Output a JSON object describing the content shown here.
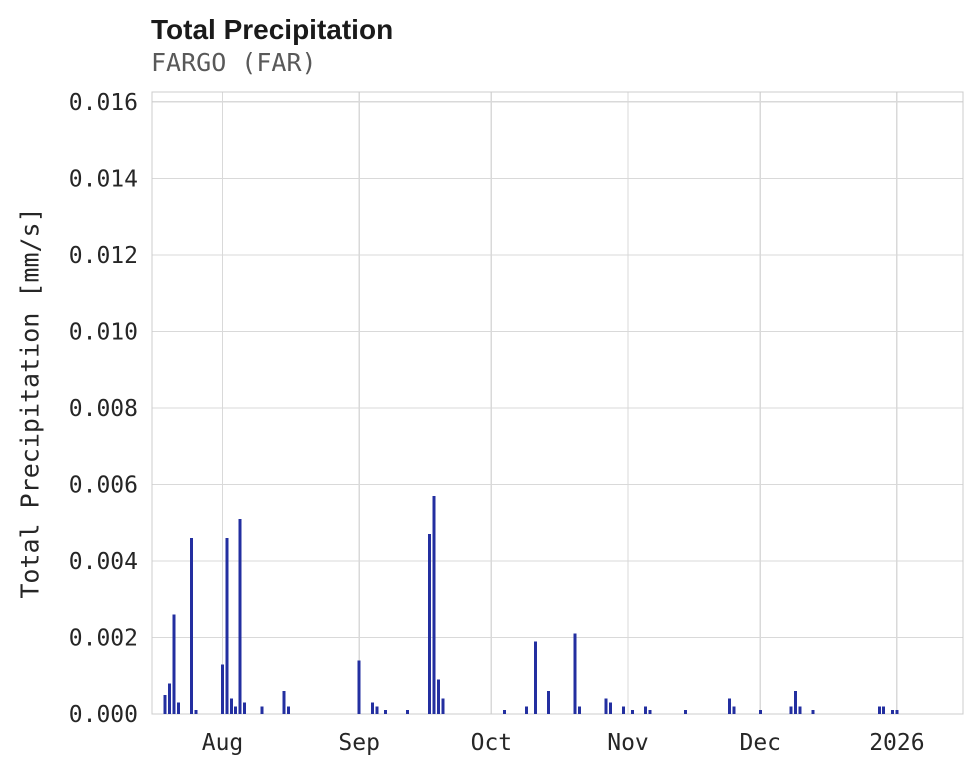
{
  "chart_data": {
    "type": "bar",
    "title": "Total Precipitation",
    "subtitle": "FARGO (FAR)",
    "ylabel": "Total Precipitation [mm/s]",
    "xlabel": "",
    "grid": true,
    "legend": "none",
    "ylim": [
      0,
      0.01626
    ],
    "x_domain": [
      "2025-07-16",
      "2026-01-16"
    ],
    "yticks": [
      {
        "value": 0.0,
        "label": "0.000"
      },
      {
        "value": 0.002,
        "label": "0.002"
      },
      {
        "value": 0.004,
        "label": "0.004"
      },
      {
        "value": 0.006,
        "label": "0.006"
      },
      {
        "value": 0.008,
        "label": "0.008"
      },
      {
        "value": 0.01,
        "label": "0.010"
      },
      {
        "value": 0.012,
        "label": "0.012"
      },
      {
        "value": 0.014,
        "label": "0.014"
      },
      {
        "value": 0.016,
        "label": "0.016"
      }
    ],
    "xticks": [
      {
        "date": "2025-08-01",
        "label": "Aug"
      },
      {
        "date": "2025-09-01",
        "label": "Sep"
      },
      {
        "date": "2025-10-01",
        "label": "Oct"
      },
      {
        "date": "2025-11-01",
        "label": "Nov"
      },
      {
        "date": "2025-12-01",
        "label": "Dec"
      },
      {
        "date": "2026-01-01",
        "label": "2026"
      }
    ],
    "colors": {
      "bar": "#232fa0",
      "grid": "#d9d9d9",
      "spine": "#cccccc",
      "tick_text": "#262626",
      "title": "#1a1a1a",
      "subtitle": "#595959"
    },
    "points": [
      {
        "date": "2025-07-19",
        "value": 0.0005
      },
      {
        "date": "2025-07-20",
        "value": 0.0008
      },
      {
        "date": "2025-07-21",
        "value": 0.0026
      },
      {
        "date": "2025-07-22",
        "value": 0.0003
      },
      {
        "date": "2025-07-25",
        "value": 0.0046
      },
      {
        "date": "2025-07-26",
        "value": 0.0001
      },
      {
        "date": "2025-08-01",
        "value": 0.0013
      },
      {
        "date": "2025-08-02",
        "value": 0.0046
      },
      {
        "date": "2025-08-03",
        "value": 0.0004
      },
      {
        "date": "2025-08-04",
        "value": 0.0002
      },
      {
        "date": "2025-08-05",
        "value": 0.0051
      },
      {
        "date": "2025-08-06",
        "value": 0.0003
      },
      {
        "date": "2025-08-10",
        "value": 0.0002
      },
      {
        "date": "2025-08-15",
        "value": 0.0006
      },
      {
        "date": "2025-08-16",
        "value": 0.0002
      },
      {
        "date": "2025-09-01",
        "value": 0.0014
      },
      {
        "date": "2025-09-04",
        "value": 0.0003
      },
      {
        "date": "2025-09-05",
        "value": 0.0002
      },
      {
        "date": "2025-09-07",
        "value": 0.0001
      },
      {
        "date": "2025-09-12",
        "value": 0.0001
      },
      {
        "date": "2025-09-17",
        "value": 0.0047
      },
      {
        "date": "2025-09-18",
        "value": 0.0057
      },
      {
        "date": "2025-09-19",
        "value": 0.0009
      },
      {
        "date": "2025-09-20",
        "value": 0.0004
      },
      {
        "date": "2025-10-04",
        "value": 0.0001
      },
      {
        "date": "2025-10-09",
        "value": 0.0002
      },
      {
        "date": "2025-10-11",
        "value": 0.0019
      },
      {
        "date": "2025-10-14",
        "value": 0.0006
      },
      {
        "date": "2025-10-20",
        "value": 0.0021
      },
      {
        "date": "2025-10-21",
        "value": 0.0002
      },
      {
        "date": "2025-10-27",
        "value": 0.0004
      },
      {
        "date": "2025-10-28",
        "value": 0.0003
      },
      {
        "date": "2025-10-31",
        "value": 0.0002
      },
      {
        "date": "2025-11-02",
        "value": 0.0001
      },
      {
        "date": "2025-11-05",
        "value": 0.0002
      },
      {
        "date": "2025-11-06",
        "value": 0.0001
      },
      {
        "date": "2025-11-14",
        "value": 0.0001
      },
      {
        "date": "2025-11-24",
        "value": 0.0004
      },
      {
        "date": "2025-11-25",
        "value": 0.0002
      },
      {
        "date": "2025-12-01",
        "value": 0.0001
      },
      {
        "date": "2025-12-08",
        "value": 0.0002
      },
      {
        "date": "2025-12-09",
        "value": 0.0006
      },
      {
        "date": "2025-12-10",
        "value": 0.0002
      },
      {
        "date": "2025-12-13",
        "value": 0.0001
      },
      {
        "date": "2025-12-28",
        "value": 0.0002
      },
      {
        "date": "2025-12-29",
        "value": 0.0002
      },
      {
        "date": "2025-12-31",
        "value": 0.0001
      },
      {
        "date": "2026-01-01",
        "value": 0.0001
      }
    ]
  }
}
